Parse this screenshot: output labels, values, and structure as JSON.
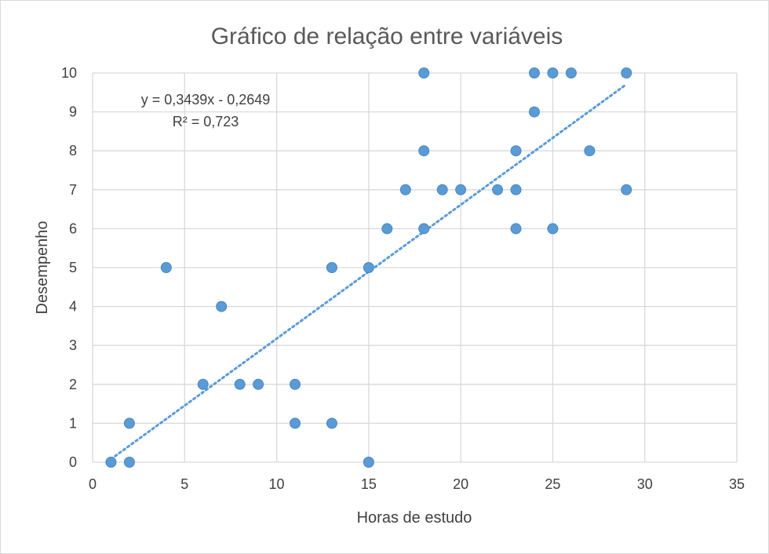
{
  "chart_data": {
    "type": "scatter",
    "title": "Gráfico de relação entre variáveis",
    "xlabel": "Horas de estudo",
    "ylabel": "Desempenho",
    "xlim": [
      0,
      35
    ],
    "ylim": [
      0,
      10
    ],
    "xticks": [
      0,
      5,
      10,
      15,
      20,
      25,
      30,
      35
    ],
    "yticks": [
      0,
      1,
      2,
      3,
      4,
      5,
      6,
      7,
      8,
      9,
      10
    ],
    "grid": true,
    "legend": "none",
    "point_color": "#5b9bd5",
    "trendline": {
      "equation": "y = 0,3439x - 0,2649",
      "r_squared": "R² = 0,723",
      "slope": 0.3439,
      "intercept": -0.2649,
      "x_range": [
        1,
        29
      ],
      "style": "dotted",
      "color": "#5b9bd5"
    },
    "points": [
      {
        "x": 1,
        "y": 0
      },
      {
        "x": 2,
        "y": 0
      },
      {
        "x": 2,
        "y": 1
      },
      {
        "x": 4,
        "y": 5
      },
      {
        "x": 6,
        "y": 2
      },
      {
        "x": 7,
        "y": 4
      },
      {
        "x": 8,
        "y": 2
      },
      {
        "x": 9,
        "y": 2
      },
      {
        "x": 11,
        "y": 2
      },
      {
        "x": 11,
        "y": 1
      },
      {
        "x": 13,
        "y": 5
      },
      {
        "x": 13,
        "y": 1
      },
      {
        "x": 15,
        "y": 5
      },
      {
        "x": 15,
        "y": 0
      },
      {
        "x": 16,
        "y": 6
      },
      {
        "x": 17,
        "y": 7
      },
      {
        "x": 18,
        "y": 10
      },
      {
        "x": 18,
        "y": 8
      },
      {
        "x": 18,
        "y": 6
      },
      {
        "x": 19,
        "y": 7
      },
      {
        "x": 20,
        "y": 7
      },
      {
        "x": 22,
        "y": 7
      },
      {
        "x": 23,
        "y": 8
      },
      {
        "x": 23,
        "y": 7
      },
      {
        "x": 23,
        "y": 6
      },
      {
        "x": 24,
        "y": 10
      },
      {
        "x": 24,
        "y": 9
      },
      {
        "x": 25,
        "y": 10
      },
      {
        "x": 25,
        "y": 6
      },
      {
        "x": 26,
        "y": 10
      },
      {
        "x": 27,
        "y": 8
      },
      {
        "x": 29,
        "y": 10
      },
      {
        "x": 29,
        "y": 7
      }
    ]
  }
}
